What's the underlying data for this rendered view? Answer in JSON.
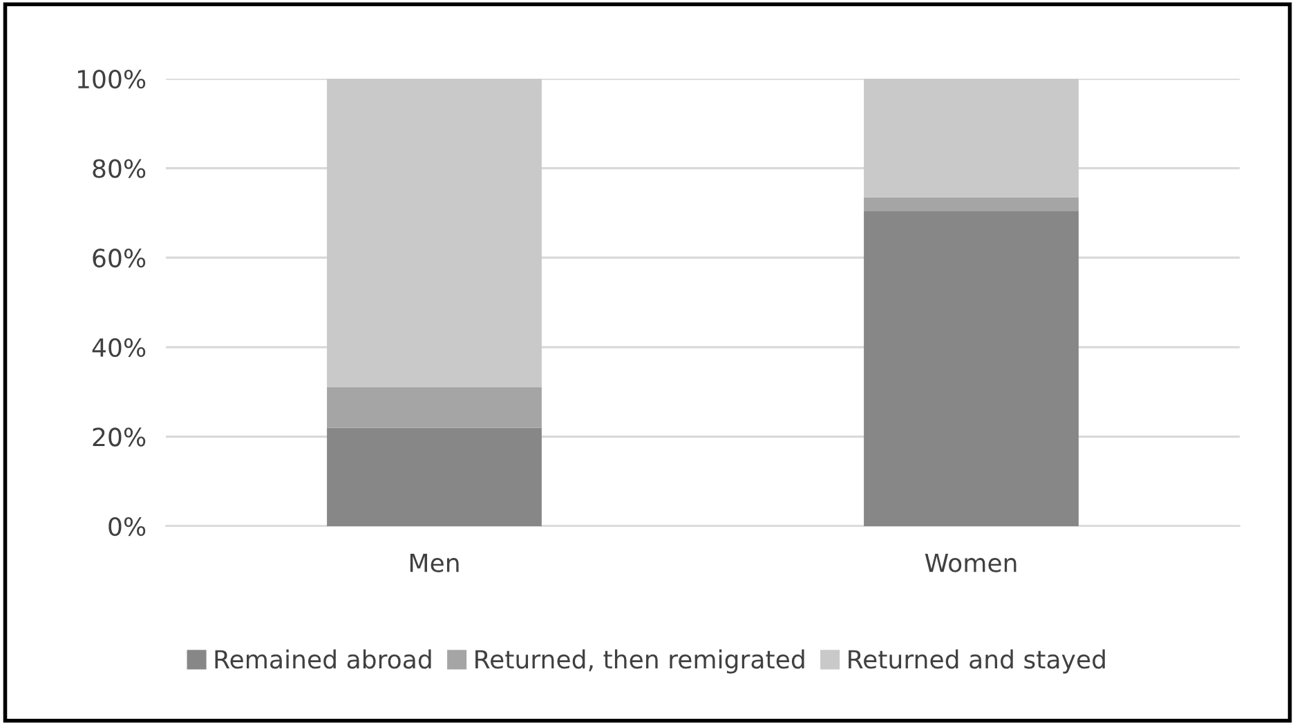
{
  "chart_data": {
    "type": "bar",
    "stacked": true,
    "categories": [
      "Men",
      "Women"
    ],
    "series": [
      {
        "name": "Remained abroad",
        "color": "#878787",
        "values": [
          22,
          70.5
        ]
      },
      {
        "name": "Returned, then remigrated",
        "color": "#a5a5a5",
        "values": [
          9,
          3
        ]
      },
      {
        "name": "Returned and stayed",
        "color": "#c9c9c9",
        "values": [
          69,
          26.5
        ]
      }
    ],
    "ylim": [
      0,
      100
    ],
    "yticks": [
      {
        "value": 0,
        "label": "0%"
      },
      {
        "value": 20,
        "label": "20%"
      },
      {
        "value": 40,
        "label": "40%"
      },
      {
        "value": 60,
        "label": "60%"
      },
      {
        "value": 80,
        "label": "80%"
      },
      {
        "value": 100,
        "label": "100%"
      }
    ],
    "grid": "y",
    "legend": "bottom"
  }
}
